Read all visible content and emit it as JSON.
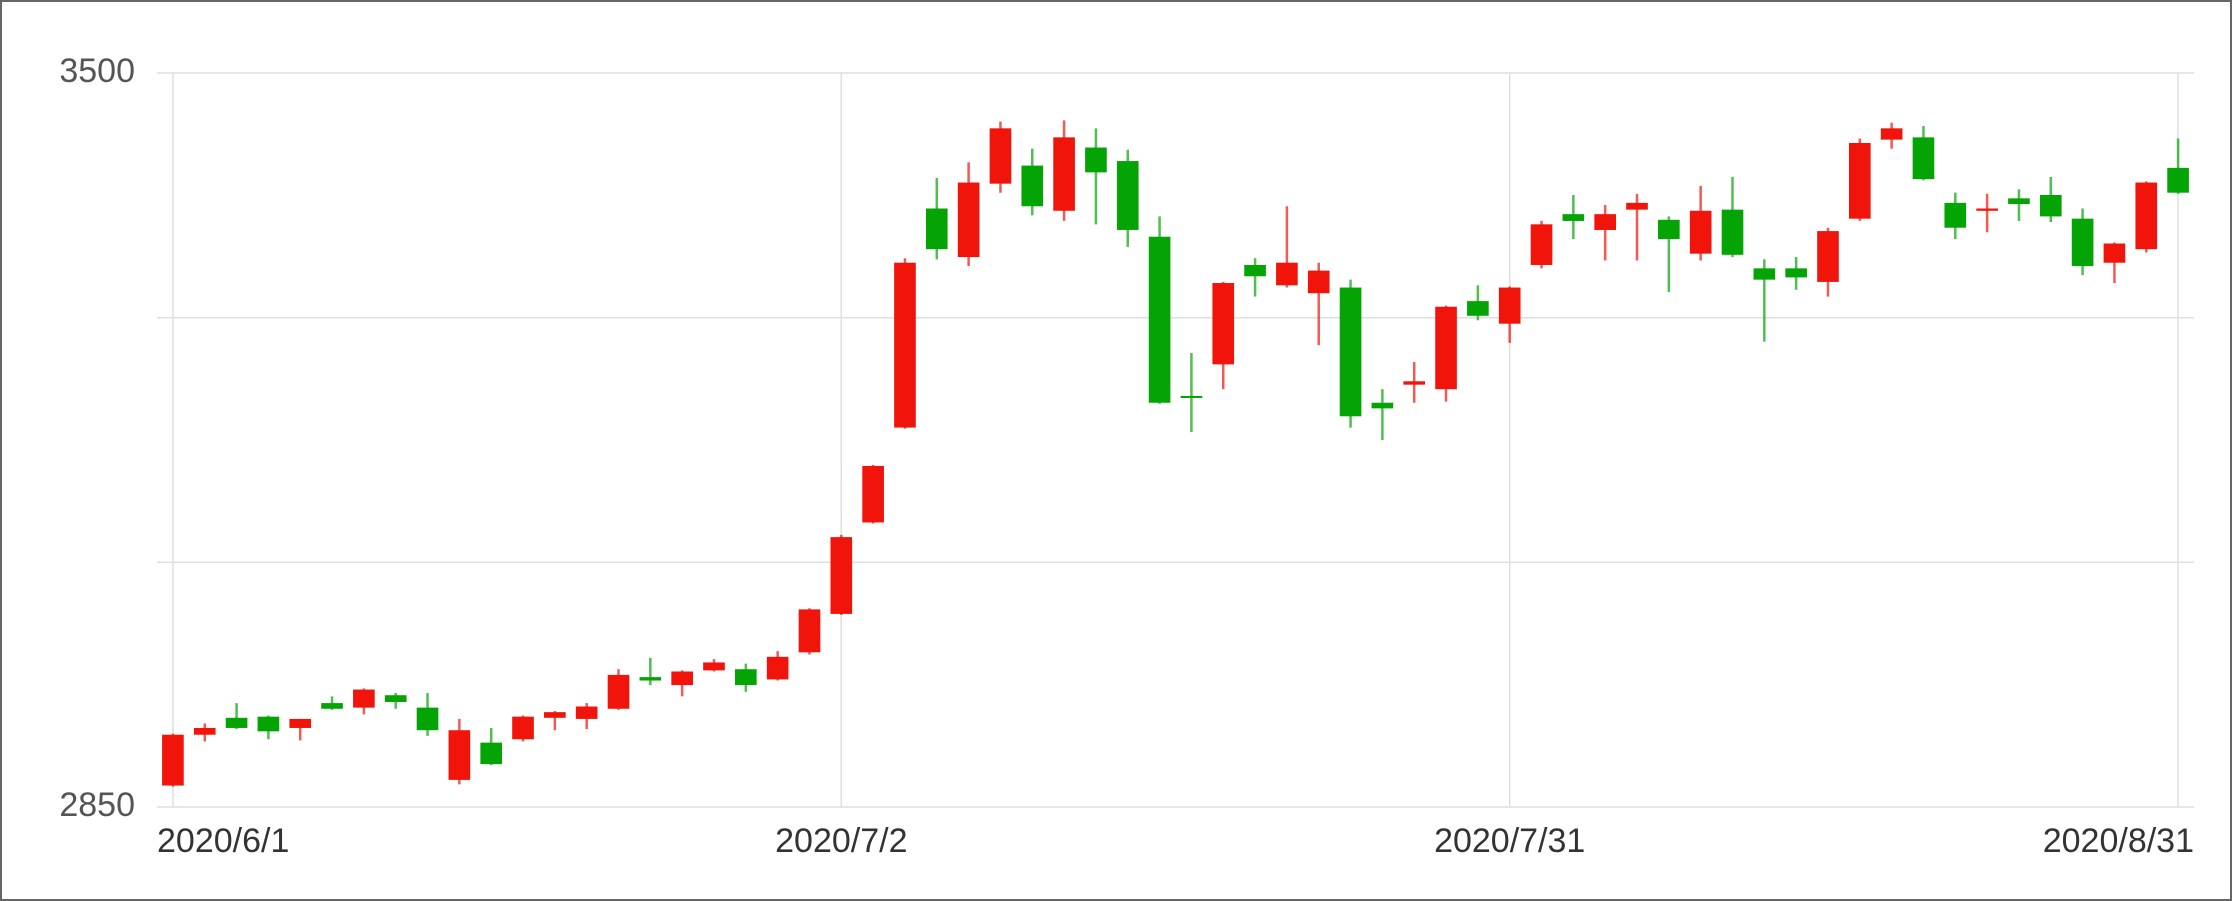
{
  "chart_data": {
    "type": "candlestick",
    "categories": [
      "2020/6/1",
      null,
      null,
      null,
      null,
      null,
      null,
      null,
      null,
      null,
      null,
      null,
      null,
      null,
      null,
      null,
      null,
      null,
      null,
      null,
      null,
      "2020/7/2",
      null,
      null,
      null,
      null,
      null,
      null,
      null,
      null,
      null,
      null,
      null,
      null,
      null,
      null,
      null,
      null,
      null,
      null,
      null,
      null,
      "2020/7/31",
      null,
      null,
      null,
      null,
      null,
      null,
      null,
      null,
      null,
      null,
      null,
      null,
      null,
      null,
      null,
      null,
      null,
      null,
      null,
      null,
      "2020/8/31"
    ],
    "open": [
      2869,
      2914,
      2929,
      2930,
      2920,
      2942,
      2938,
      2949,
      2938,
      2874,
      2907,
      2910,
      2929,
      2928,
      2937,
      2965,
      2958,
      2971,
      2972,
      2963,
      2987,
      3021,
      3102,
      3186,
      3380,
      3337,
      3402,
      3418,
      3378,
      3434,
      3422,
      3355,
      3214,
      3242,
      3330,
      3312,
      3305,
      3310,
      3208,
      3224,
      3220,
      3298,
      3278,
      3330,
      3375,
      3361,
      3379,
      3370,
      3340,
      3379,
      3327,
      3327,
      3315,
      3371,
      3441,
      3443,
      3385,
      3378,
      3389,
      3392,
      3371,
      3332,
      3344,
      3416
    ],
    "high": [
      2915,
      2924,
      2942,
      2931,
      2928,
      2948,
      2955,
      2951,
      2951,
      2928,
      2920,
      2931,
      2935,
      2942,
      2972,
      2982,
      2971,
      2981,
      2977,
      2988,
      3026,
      3091,
      3153,
      3336,
      3407,
      3421,
      3457,
      3433,
      3458,
      3451,
      3432,
      3373,
      3252,
      3315,
      3336,
      3382,
      3332,
      3317,
      3220,
      3244,
      3294,
      3312,
      3311,
      3369,
      3392,
      3383,
      3393,
      3373,
      3400,
      3408,
      3335,
      3337,
      3363,
      3442,
      3456,
      3453,
      3394,
      3393,
      3397,
      3408,
      3380,
      3350,
      3404,
      3442
    ],
    "low": [
      2868,
      2908,
      2919,
      2910,
      2909,
      2936,
      2932,
      2937,
      2913,
      2870,
      2887,
      2908,
      2918,
      2919,
      2936,
      2958,
      2948,
      2970,
      2952,
      2962,
      2985,
      3020,
      3101,
      3185,
      3335,
      3329,
      3394,
      3374,
      3369,
      3366,
      3346,
      3207,
      3182,
      3220,
      3302,
      3310,
      3259,
      3186,
      3175,
      3208,
      3209,
      3281,
      3261,
      3327,
      3353,
      3334,
      3334,
      3306,
      3334,
      3337,
      3262,
      3308,
      3302,
      3369,
      3433,
      3405,
      3353,
      3359,
      3369,
      3368,
      3321,
      3314,
      3341,
      3393
    ],
    "close": [
      2914,
      2920,
      2920,
      2917,
      2928,
      2937,
      2954,
      2943,
      2918,
      2918,
      2888,
      2930,
      2934,
      2939,
      2967,
      2962,
      2970,
      2978,
      2958,
      2983,
      3025,
      3089,
      3152,
      3332,
      3344,
      3403,
      3451,
      3382,
      3443,
      3412,
      3361,
      3208,
      3213,
      3314,
      3320,
      3332,
      3325,
      3196,
      3203,
      3227,
      3293,
      3285,
      3310,
      3366,
      3369,
      3375,
      3385,
      3353,
      3378,
      3339,
      3317,
      3319,
      3360,
      3438,
      3451,
      3406,
      3363,
      3380,
      3384,
      3373,
      3329,
      3349,
      3403,
      3394
    ],
    "up_color": "#f0140a",
    "down_color": "#04a404",
    "ylim": [
      2850,
      3500
    ],
    "yticks": [
      2850,
      3500
    ],
    "ygrid": [
      2850,
      3066.7,
      3283.3,
      3500
    ]
  }
}
